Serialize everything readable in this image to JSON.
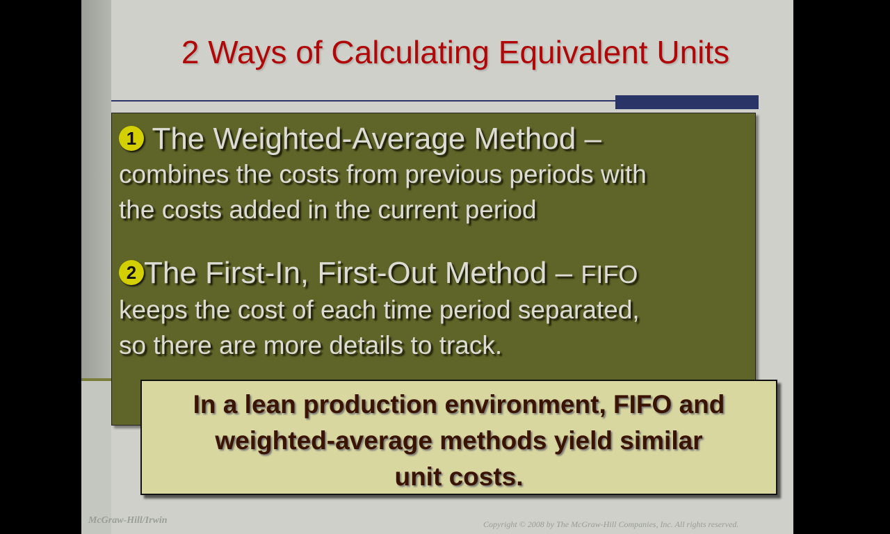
{
  "title": "2 Ways of Calculating Equivalent Units",
  "items": [
    {
      "number": "1",
      "heading": "The Weighted-Average Method –",
      "body_lines": [
        "combines the costs from previous periods with",
        "the costs added in the current period"
      ]
    },
    {
      "number": "2",
      "heading": "The First-In, First-Out Method – ",
      "heading_suffix": "FIFO",
      "body_lines": [
        "keeps the cost of each time period separated,",
        "so there are more details to track."
      ]
    }
  ],
  "note_lines": [
    "In a lean production environment, FIFO and",
    "weighted-average methods yield similar",
    "unit costs."
  ],
  "footer": {
    "left": "McGraw-Hill/Irwin",
    "right": "Copyright © 2008 by The McGraw-Hill Companies, Inc. All rights reserved."
  },
  "colors": {
    "title": "#b00808",
    "box": "#5f6428",
    "note": "#d8d7a0",
    "accent_bar": "#2b3466",
    "bullet": "#d4d000"
  }
}
